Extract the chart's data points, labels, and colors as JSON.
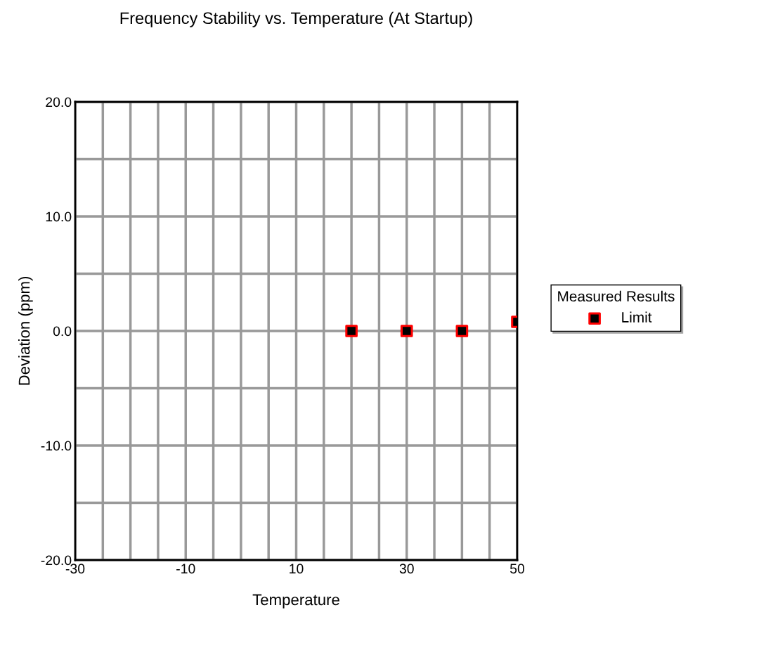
{
  "chart_data": {
    "type": "scatter",
    "title": "Frequency Stability vs. Temperature (At Startup)",
    "xlabel": "Temperature",
    "ylabel": "Deviation (ppm)",
    "legend_title": "Measured Results",
    "x": [
      20,
      30,
      40,
      50
    ],
    "series": [
      {
        "name": "Limit",
        "color": "#000000",
        "values": [
          0,
          0,
          0,
          0.8
        ]
      }
    ],
    "marker": "square",
    "grid": true,
    "legend": "right",
    "xlim": [
      -30,
      50
    ],
    "ylim": [
      -20,
      20
    ],
    "xticks": [
      -30,
      {
        "value": -25,
        "label": null
      },
      {
        "value": -20,
        "label": null
      },
      {
        "value": -15,
        "label": null
      },
      -10,
      {
        "value": -5,
        "label": null
      },
      {
        "value": 0,
        "label": null
      },
      {
        "value": 5,
        "label": null
      },
      10,
      {
        "value": 15,
        "label": null
      },
      {
        "value": 20,
        "label": null
      },
      {
        "value": 25,
        "label": null
      },
      30,
      {
        "value": 35,
        "label": null
      },
      {
        "value": 40,
        "label": null
      },
      {
        "value": 45,
        "label": null
      },
      50
    ],
    "yticks": [
      {
        "value": 20,
        "label": "20.0"
      },
      {
        "value": 15,
        "label": null
      },
      {
        "value": 10,
        "label": "10.0"
      },
      {
        "value": 5,
        "label": null
      },
      {
        "value": 0,
        "label": "0.0"
      },
      {
        "value": -5,
        "label": null
      },
      {
        "value": -10,
        "label": "-10.0"
      },
      {
        "value": -15,
        "label": null
      },
      {
        "value": -20,
        "label": "-20.0"
      }
    ]
  }
}
